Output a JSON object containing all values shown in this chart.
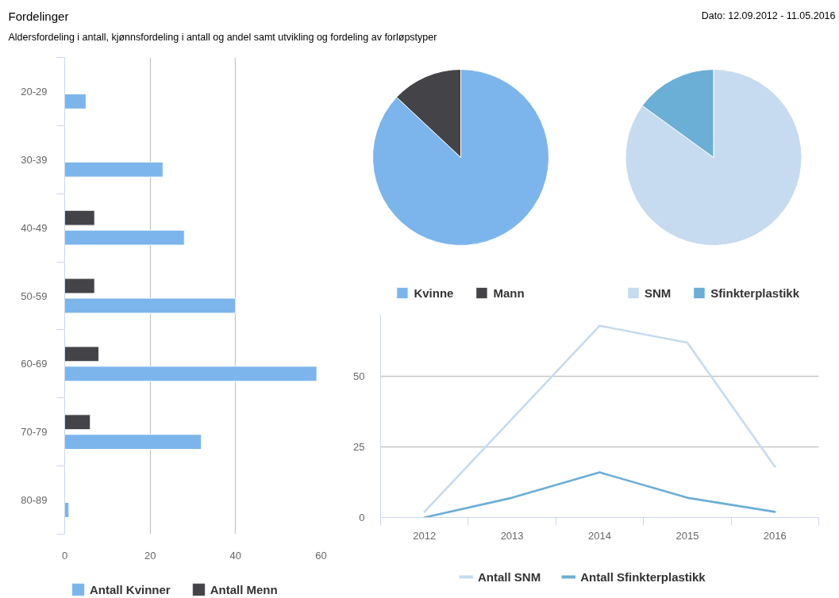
{
  "chart_data": [
    {
      "type": "bar",
      "title": "Fordelinger",
      "subtitle": "Aldersfordeling i antall, kjønnsfordeling i antall og andel samt utvikling og fordeling av forløpstyper",
      "annotations": [
        "Dato: 12.09.2012 - 11.05.2016"
      ],
      "orientation": "horizontal",
      "categories": [
        "20-29",
        "30-39",
        "40-49",
        "50-59",
        "60-69",
        "70-79",
        "80-89"
      ],
      "series": [
        {
          "name": "Antall Kvinner",
          "color": "#7cb5ec",
          "values": [
            5,
            23,
            28,
            40,
            59,
            32,
            1
          ]
        },
        {
          "name": "Antall Menn",
          "color": "#434348",
          "values": [
            null,
            null,
            7,
            7,
            8,
            6,
            null
          ]
        }
      ],
      "xlim": [
        0,
        60
      ],
      "xticks": [
        0,
        20,
        40,
        60
      ],
      "grid": "x",
      "legend": "bottom"
    },
    {
      "type": "pie",
      "categories": [
        "Kvinne",
        "Mann"
      ],
      "values": [
        87,
        13
      ],
      "colors": [
        "#7cb5ec",
        "#434348"
      ],
      "legend": "bottom"
    },
    {
      "type": "pie",
      "categories": [
        "SNM",
        "Sfinkterplastikk"
      ],
      "values": [
        85,
        15
      ],
      "colors": [
        "#c6dbef",
        "#6baed6"
      ],
      "legend": "bottom"
    },
    {
      "type": "line",
      "categories": [
        "2012",
        "2013",
        "2014",
        "2015",
        "2016"
      ],
      "series": [
        {
          "name": "Antall SNM",
          "color": "#c6dbef",
          "values": [
            2,
            35,
            68,
            62,
            18
          ]
        },
        {
          "name": "Antall Sfinkterplastikk",
          "color": "#6baed6",
          "values": [
            0,
            7,
            16,
            7,
            2
          ]
        }
      ],
      "ylim": [
        0,
        72
      ],
      "yticks": [
        0,
        25,
        50
      ],
      "grid": "y",
      "legend": "bottom"
    }
  ]
}
